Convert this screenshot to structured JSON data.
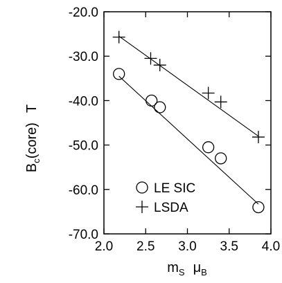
{
  "chart_data": {
    "type": "scatter",
    "xlim": [
      2.0,
      4.0
    ],
    "ylim": [
      -70.0,
      -20.0
    ],
    "x_ticks": [
      "2.0",
      "2.5",
      "3.0",
      "3.5",
      "4.0"
    ],
    "y_ticks": [
      "-20.0",
      "-30.0",
      "-40.0",
      "-50.0",
      "-60.0",
      "-70.0"
    ],
    "x_tick_values": [
      2.0,
      2.5,
      3.0,
      3.5,
      4.0
    ],
    "y_tick_values": [
      -20.0,
      -30.0,
      -40.0,
      -50.0,
      -60.0,
      -70.0
    ],
    "xlabel": {
      "main": "m",
      "sub1": "S",
      "mid": "μ",
      "sub2": "B"
    },
    "ylabel": {
      "main": "B",
      "sub": "c",
      "rest": "(core)",
      "unit": "T"
    },
    "grid": false,
    "legend_position": "bottom-left",
    "series": [
      {
        "name": "LE SIC",
        "marker": "circle",
        "x": [
          2.18,
          2.57,
          2.67,
          3.25,
          3.4,
          3.85
        ],
        "y": [
          -34.0,
          -40.0,
          -41.5,
          -50.5,
          -53.0,
          -64.0
        ],
        "fit": {
          "x": [
            2.18,
            3.85
          ],
          "y": [
            -34.5,
            -63.3
          ]
        }
      },
      {
        "name": "LSDA",
        "marker": "plus",
        "x": [
          2.18,
          2.56,
          2.67,
          3.25,
          3.4,
          3.85
        ],
        "y": [
          -25.7,
          -30.5,
          -32.0,
          -38.3,
          -40.3,
          -48.2
        ],
        "fit": {
          "x": [
            2.18,
            3.85
          ],
          "y": [
            -25.5,
            -48.0
          ]
        }
      }
    ]
  }
}
